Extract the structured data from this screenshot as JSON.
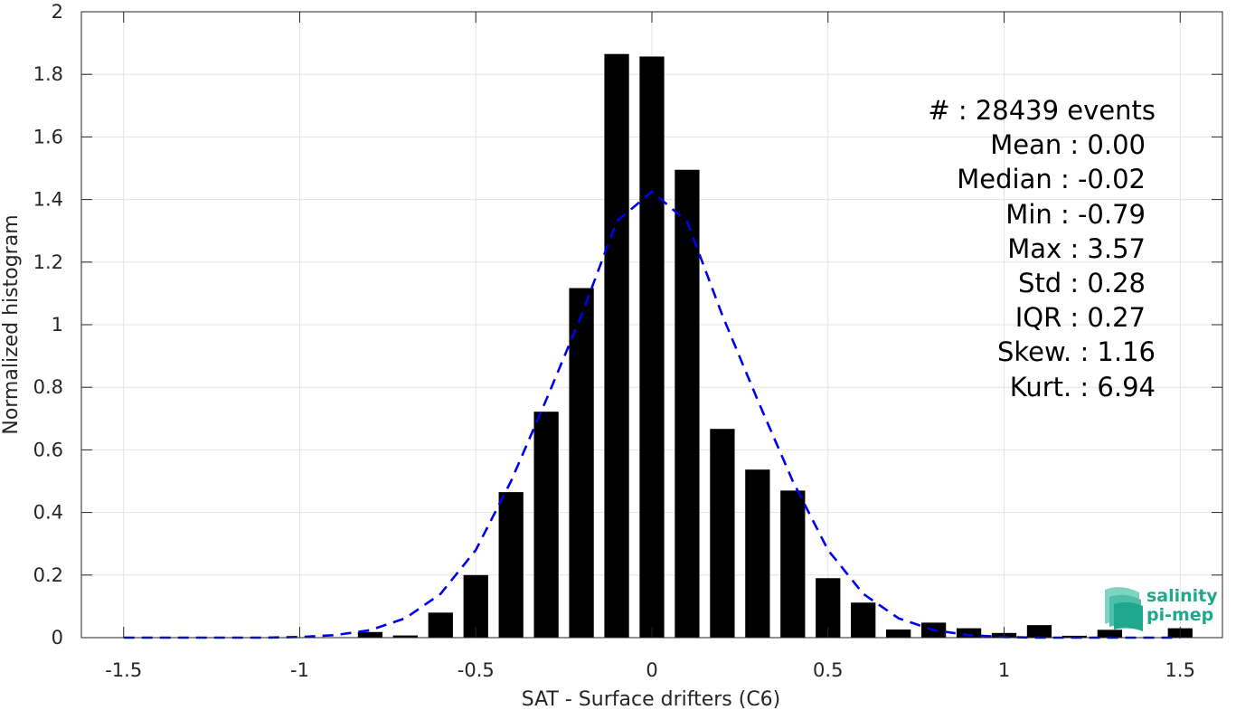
{
  "chart_data": {
    "type": "bar",
    "xlabel": "SAT - Surface drifters (C6)",
    "ylabel": "Normalized histogram",
    "xlim": [
      -1.62,
      1.62
    ],
    "ylim": [
      0,
      2
    ],
    "xticks": [
      -1.5,
      -1,
      -0.5,
      0,
      0.5,
      1,
      1.5
    ],
    "xtick_labels": [
      "-1.5",
      "-1",
      "-0.5",
      "0",
      "0.5",
      "1",
      "1.5"
    ],
    "yticks": [
      0,
      0.2,
      0.4,
      0.6,
      0.8,
      1,
      1.2,
      1.4,
      1.6,
      1.8,
      2
    ],
    "ytick_labels": [
      "0",
      "0.2",
      "0.4",
      "0.6",
      "0.8",
      "1",
      "1.2",
      "1.4",
      "1.6",
      "1.8",
      "2"
    ],
    "grid": true,
    "bar_width": 0.07,
    "bar_color": "#000000",
    "bars": {
      "x": [
        -0.8,
        -0.7,
        -0.6,
        -0.5,
        -0.4,
        -0.3,
        -0.2,
        -0.1,
        0.0,
        0.1,
        0.2,
        0.3,
        0.4,
        0.5,
        0.6,
        0.7,
        0.8,
        0.9,
        1.0,
        1.1,
        1.2,
        1.3,
        1.5
      ],
      "values": [
        0.018,
        0.007,
        0.08,
        0.2,
        0.465,
        0.722,
        1.117,
        1.865,
        1.857,
        1.495,
        0.667,
        0.537,
        0.47,
        0.19,
        0.112,
        0.026,
        0.048,
        0.03,
        0.015,
        0.04,
        0.006,
        0.025,
        0.03
      ]
    },
    "fit_curve": {
      "style": "dashed",
      "color": "#0000ee",
      "x": [
        -1.5,
        -1.4,
        -1.3,
        -1.2,
        -1.1,
        -1.0,
        -0.9,
        -0.8,
        -0.7,
        -0.6,
        -0.5,
        -0.4,
        -0.3,
        -0.2,
        -0.1,
        0.0,
        0.1,
        0.2,
        0.3,
        0.4,
        0.5,
        0.6,
        0.7,
        0.8,
        0.9,
        1.0,
        1.1,
        1.2,
        1.3,
        1.4,
        1.5
      ],
      "y": [
        0.0,
        0.0,
        0.0,
        0.0,
        0.0,
        0.002,
        0.008,
        0.024,
        0.062,
        0.14,
        0.28,
        0.5,
        0.76,
        1.03,
        1.33,
        1.425,
        1.33,
        1.03,
        0.76,
        0.5,
        0.28,
        0.14,
        0.062,
        0.024,
        0.008,
        0.002,
        0.0,
        0.0,
        0.0,
        0.0,
        0.0
      ]
    },
    "stats": [
      "#  : 28439 events",
      "Mean : 0.00",
      "Median : -0.02",
      "Min : -0.79",
      "Max : 3.57",
      "Std : 0.28",
      "IQR : 0.27",
      "Skew. : 1.16",
      "Kurt. : 6.94"
    ]
  },
  "logo": {
    "line1": "salinity",
    "line2": "pi-mep",
    "color": "#1fa88e"
  }
}
